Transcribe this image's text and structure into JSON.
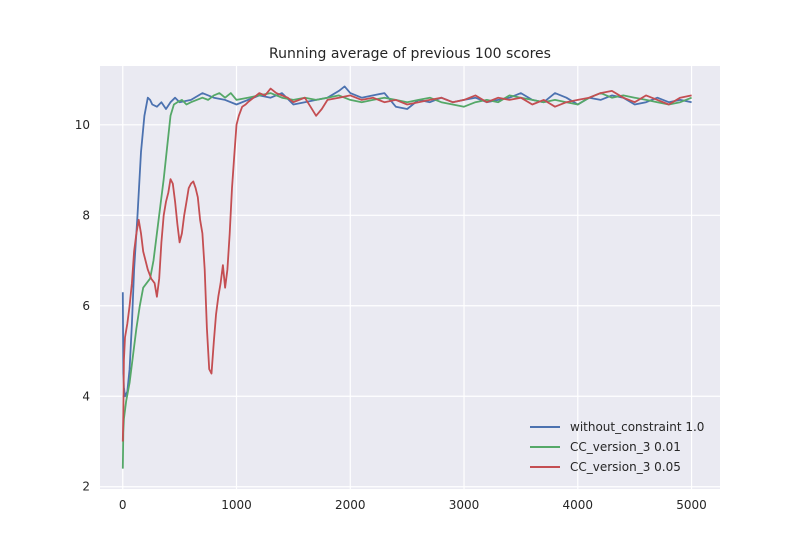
{
  "chart_data": {
    "type": "line",
    "title": "Running average of previous 100 scores",
    "xlabel": "",
    "ylabel": "",
    "xlim": [
      -200,
      5250
    ],
    "ylim": [
      1.95,
      11.3
    ],
    "xticks": [
      0,
      1000,
      2000,
      3000,
      4000,
      5000
    ],
    "yticks": [
      2,
      4,
      6,
      8,
      10
    ],
    "grid": true,
    "legend_position": "lower-right",
    "colors": {
      "background": "#eaeaf2",
      "grid": "#ffffff",
      "blue": "#4c72b0",
      "green": "#55a868",
      "red": "#c44e52"
    },
    "series": [
      {
        "name": "without_constraint 1.0",
        "color": "#4c72b0",
        "x": [
          0,
          5,
          10,
          20,
          40,
          60,
          80,
          100,
          130,
          160,
          190,
          220,
          240,
          260,
          300,
          340,
          380,
          420,
          460,
          500,
          600,
          700,
          800,
          900,
          1000,
          1100,
          1200,
          1300,
          1400,
          1500,
          1600,
          1700,
          1800,
          1900,
          1950,
          2000,
          2100,
          2200,
          2300,
          2400,
          2500,
          2600,
          2700,
          2800,
          2900,
          3000,
          3100,
          3200,
          3300,
          3400,
          3500,
          3600,
          3700,
          3800,
          3900,
          4000,
          4100,
          4200,
          4300,
          4400,
          4500,
          4600,
          4700,
          4800,
          4900,
          5000
        ],
        "y": [
          6.3,
          4.5,
          4.2,
          4.0,
          4.1,
          4.6,
          5.6,
          6.8,
          8.0,
          9.4,
          10.2,
          10.6,
          10.55,
          10.45,
          10.4,
          10.5,
          10.35,
          10.5,
          10.6,
          10.5,
          10.55,
          10.7,
          10.6,
          10.55,
          10.45,
          10.55,
          10.65,
          10.6,
          10.7,
          10.45,
          10.5,
          10.55,
          10.6,
          10.75,
          10.85,
          10.7,
          10.6,
          10.65,
          10.7,
          10.4,
          10.35,
          10.55,
          10.5,
          10.6,
          10.5,
          10.55,
          10.6,
          10.5,
          10.55,
          10.6,
          10.7,
          10.55,
          10.5,
          10.7,
          10.6,
          10.45,
          10.6,
          10.55,
          10.65,
          10.6,
          10.45,
          10.5,
          10.6,
          10.5,
          10.55,
          10.5
        ]
      },
      {
        "name": "CC_version_3 0.01",
        "color": "#55a868",
        "x": [
          0,
          5,
          10,
          30,
          60,
          90,
          120,
          150,
          180,
          210,
          240,
          270,
          300,
          330,
          360,
          390,
          420,
          450,
          480,
          520,
          560,
          600,
          650,
          700,
          750,
          800,
          850,
          900,
          950,
          1000,
          1100,
          1200,
          1300,
          1400,
          1500,
          1600,
          1700,
          1800,
          1900,
          2000,
          2100,
          2200,
          2300,
          2400,
          2500,
          2600,
          2700,
          2800,
          2900,
          3000,
          3100,
          3200,
          3300,
          3400,
          3500,
          3600,
          3700,
          3800,
          3900,
          4000,
          4100,
          4200,
          4300,
          4400,
          4500,
          4600,
          4700,
          4800,
          4900,
          5000
        ],
        "y": [
          2.4,
          3.2,
          3.5,
          3.9,
          4.3,
          4.9,
          5.5,
          6.0,
          6.4,
          6.5,
          6.6,
          7.0,
          7.6,
          8.2,
          8.8,
          9.5,
          10.2,
          10.45,
          10.5,
          10.55,
          10.45,
          10.5,
          10.55,
          10.6,
          10.55,
          10.65,
          10.7,
          10.6,
          10.7,
          10.55,
          10.6,
          10.65,
          10.7,
          10.6,
          10.55,
          10.6,
          10.55,
          10.6,
          10.65,
          10.55,
          10.5,
          10.55,
          10.6,
          10.55,
          10.5,
          10.55,
          10.6,
          10.5,
          10.45,
          10.4,
          10.5,
          10.55,
          10.5,
          10.65,
          10.6,
          10.55,
          10.5,
          10.55,
          10.5,
          10.45,
          10.6,
          10.7,
          10.6,
          10.65,
          10.6,
          10.55,
          10.5,
          10.45,
          10.5,
          10.6
        ]
      },
      {
        "name": "CC_version_3 0.05",
        "color": "#c44e52",
        "x": [
          0,
          5,
          10,
          20,
          40,
          60,
          80,
          100,
          120,
          140,
          160,
          180,
          200,
          220,
          250,
          280,
          300,
          320,
          340,
          360,
          380,
          400,
          420,
          440,
          460,
          480,
          500,
          520,
          540,
          560,
          580,
          600,
          620,
          640,
          660,
          680,
          700,
          720,
          740,
          760,
          780,
          800,
          820,
          840,
          860,
          880,
          900,
          920,
          940,
          960,
          980,
          1000,
          1020,
          1050,
          1080,
          1100,
          1150,
          1200,
          1250,
          1300,
          1350,
          1400,
          1450,
          1500,
          1550,
          1600,
          1650,
          1700,
          1750,
          1800,
          1900,
          2000,
          2100,
          2200,
          2300,
          2400,
          2500,
          2600,
          2700,
          2800,
          2900,
          3000,
          3100,
          3200,
          3300,
          3400,
          3500,
          3600,
          3700,
          3800,
          3900,
          4000,
          4100,
          4200,
          4300,
          4400,
          4500,
          4600,
          4700,
          4800,
          4900,
          5000
        ],
        "y": [
          3.0,
          3.6,
          4.8,
          5.3,
          5.6,
          6.0,
          6.5,
          7.2,
          7.6,
          7.9,
          7.6,
          7.2,
          7.0,
          6.8,
          6.6,
          6.5,
          6.2,
          6.6,
          7.4,
          8.0,
          8.3,
          8.5,
          8.8,
          8.7,
          8.3,
          7.8,
          7.4,
          7.6,
          8.0,
          8.3,
          8.6,
          8.7,
          8.75,
          8.6,
          8.4,
          7.9,
          7.6,
          6.8,
          5.5,
          4.6,
          4.5,
          5.2,
          5.8,
          6.2,
          6.5,
          6.9,
          6.4,
          6.8,
          7.6,
          8.6,
          9.3,
          10.0,
          10.2,
          10.4,
          10.45,
          10.5,
          10.6,
          10.7,
          10.65,
          10.8,
          10.7,
          10.65,
          10.6,
          10.5,
          10.55,
          10.6,
          10.4,
          10.2,
          10.35,
          10.55,
          10.6,
          10.65,
          10.55,
          10.6,
          10.5,
          10.55,
          10.45,
          10.5,
          10.55,
          10.6,
          10.5,
          10.55,
          10.65,
          10.5,
          10.6,
          10.55,
          10.6,
          10.45,
          10.55,
          10.4,
          10.5,
          10.55,
          10.6,
          10.7,
          10.75,
          10.6,
          10.5,
          10.65,
          10.55,
          10.45,
          10.6,
          10.65
        ]
      }
    ]
  }
}
